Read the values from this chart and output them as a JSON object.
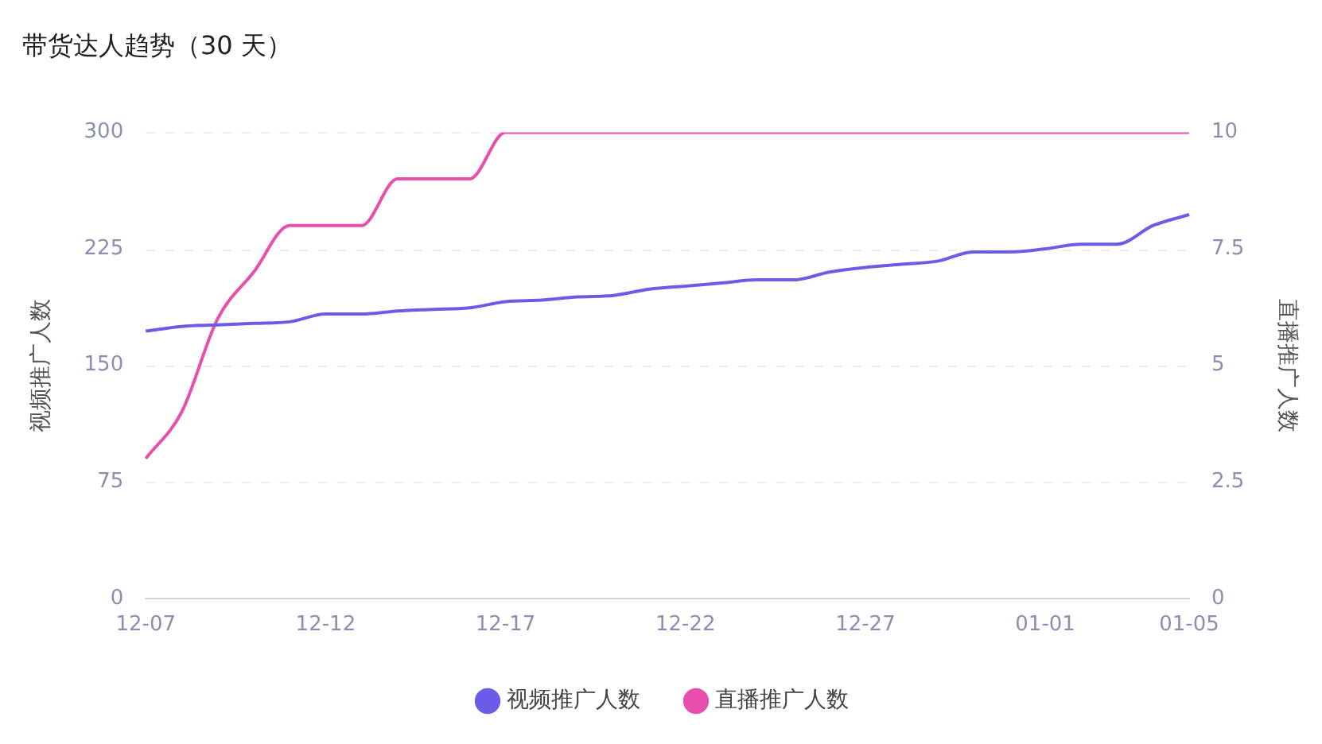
{
  "chart_data": {
    "type": "line",
    "title": "带货达人趋势（30 天）",
    "ylabel": "视频推广人数",
    "y2label": "直播推广人数",
    "categories": [
      "12-07",
      null,
      null,
      null,
      null,
      "12-12",
      null,
      null,
      null,
      null,
      "12-17",
      null,
      null,
      null,
      null,
      "12-22",
      null,
      null,
      null,
      null,
      "12-27",
      null,
      null,
      null,
      null,
      "01-01",
      null,
      null,
      null,
      "01-05"
    ],
    "series": [
      {
        "name": "视频推广人数",
        "color": "#6b5ce7",
        "values": [
          172,
          175,
          176,
          177,
          178,
          183,
          183,
          185,
          186,
          187,
          191,
          192,
          194,
          195,
          199,
          201,
          203,
          205,
          205,
          210,
          213,
          215,
          217,
          223,
          223,
          225,
          228,
          228,
          240,
          247
        ]
      },
      {
        "name": "直播推广人数",
        "color": "#e84fad",
        "axis": "y2",
        "values": [
          3,
          4,
          6,
          7,
          8,
          8,
          8,
          9,
          9,
          9,
          10,
          10,
          10,
          10,
          10,
          10,
          10,
          10,
          10,
          10,
          10,
          10,
          10,
          10,
          10,
          10,
          10,
          10,
          10,
          10
        ]
      }
    ],
    "ylim": [
      0,
      300
    ],
    "yticks": [
      0,
      75,
      150,
      225,
      300
    ],
    "y2lim": [
      0,
      10
    ],
    "y2ticks": [
      0,
      2.5,
      5,
      7.5,
      10
    ],
    "grid": "y",
    "legend": "bottom",
    "marker": "none",
    "line_style": "solid"
  }
}
